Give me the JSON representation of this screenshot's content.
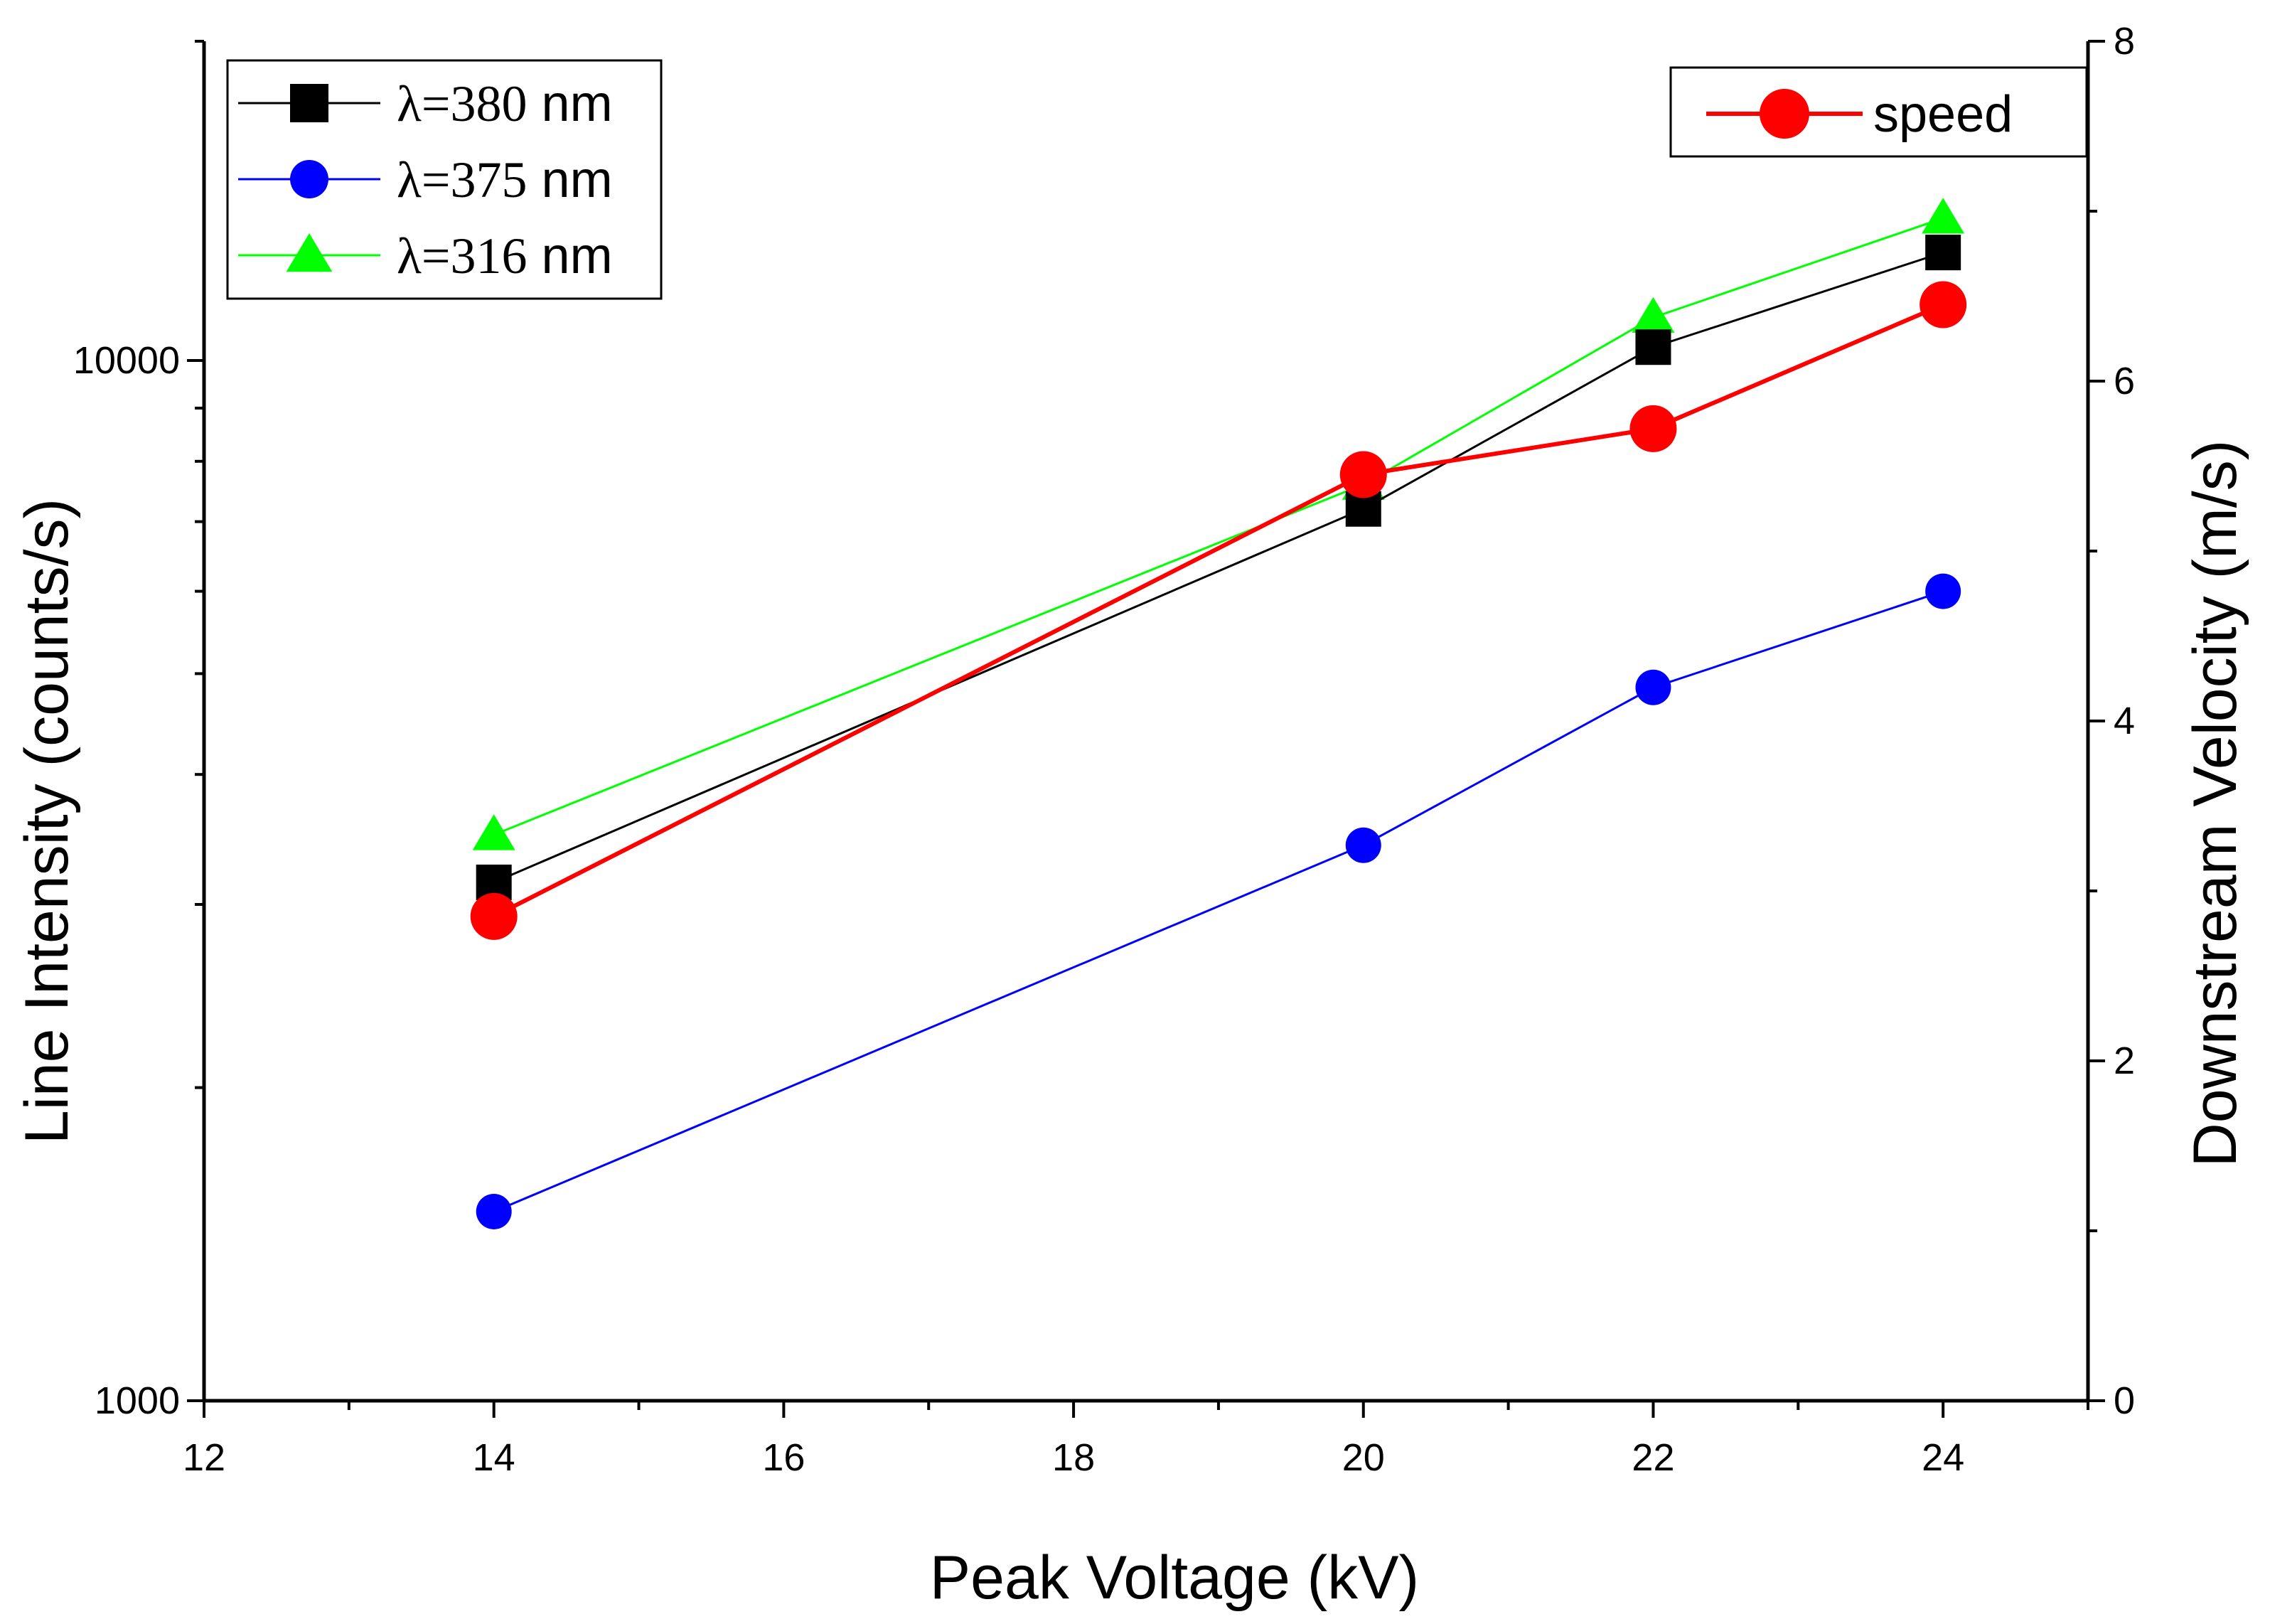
{
  "chart_data": {
    "type": "line",
    "x": [
      14,
      20,
      22,
      24
    ],
    "xlabel": "Peak Voltage (kV)",
    "ylabel": "Line Intensity (counts/s)",
    "y2label": "Downstream Velocity (m/s)",
    "xlim": [
      12,
      25
    ],
    "ylim": [
      1000,
      18600
    ],
    "yscale": "log",
    "y2lim": [
      0,
      8
    ],
    "x_ticks": [
      12,
      14,
      16,
      18,
      20,
      22,
      24
    ],
    "y_ticks": [
      1000,
      10000
    ],
    "y2_ticks": [
      0,
      2,
      4,
      6,
      8
    ],
    "series": [
      {
        "name": "380 nm",
        "prefix": "λ=380",
        "unit": " nm",
        "axis": "left",
        "marker": "square",
        "color": "#000000",
        "values": [
          3150,
          7200,
          10300,
          12700
        ]
      },
      {
        "name": "375 nm",
        "prefix": "λ=375",
        "unit": " nm",
        "axis": "left",
        "marker": "circle",
        "color": "#0000ff",
        "values": [
          1520,
          3420,
          4850,
          6000
        ]
      },
      {
        "name": "316 nm",
        "prefix": "λ=316",
        "unit": " nm",
        "axis": "left",
        "marker": "triangle",
        "color": "#00ff00",
        "values": [
          3500,
          7600,
          11000,
          13700
        ]
      },
      {
        "name": "speed",
        "axis": "right",
        "marker": "circle",
        "color": "#ff0000",
        "values": [
          2.85,
          5.45,
          5.72,
          6.45
        ]
      }
    ],
    "legend_left": "top-left",
    "legend_right": "top-right"
  }
}
